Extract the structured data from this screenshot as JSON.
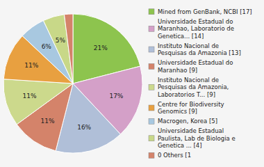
{
  "chart_data": {
    "type": "pie",
    "categories": [
      "Mined from GenBank, NCBI [17]",
      "Universidade Estadual do\nMaranhao, Laboratorio de\nGenetica... [14]",
      "Instituto Nacional de\nPesquisas da Amazonia [13]",
      "Universidade Estadual do\nMaranhao [9]",
      "Instituto Nacional de\nPesquisas da Amazonia,\nLaboratorios T... [9]",
      "Centre for Biodiversity\nGenomics [9]",
      "Macrogen, Korea [5]",
      "Universidade Estadual\nPaulista, Lab de Biologia e\nGenetica ... [4]",
      "0 Others [1"
    ],
    "values": [
      21,
      17,
      16,
      11,
      11,
      11,
      6,
      5,
      2
    ],
    "value_labels": [
      "21%",
      "17%",
      "16%",
      "11%",
      "11%",
      "11%",
      "6%",
      "5%",
      null
    ],
    "colors": [
      "#8dc44e",
      "#d4a0c8",
      "#b0bfd8",
      "#d4836a",
      "#ccd98c",
      "#e8a040",
      "#a8c8e0",
      "#c8d888",
      "#d4836a"
    ],
    "data_labels": true,
    "legend": "right"
  }
}
